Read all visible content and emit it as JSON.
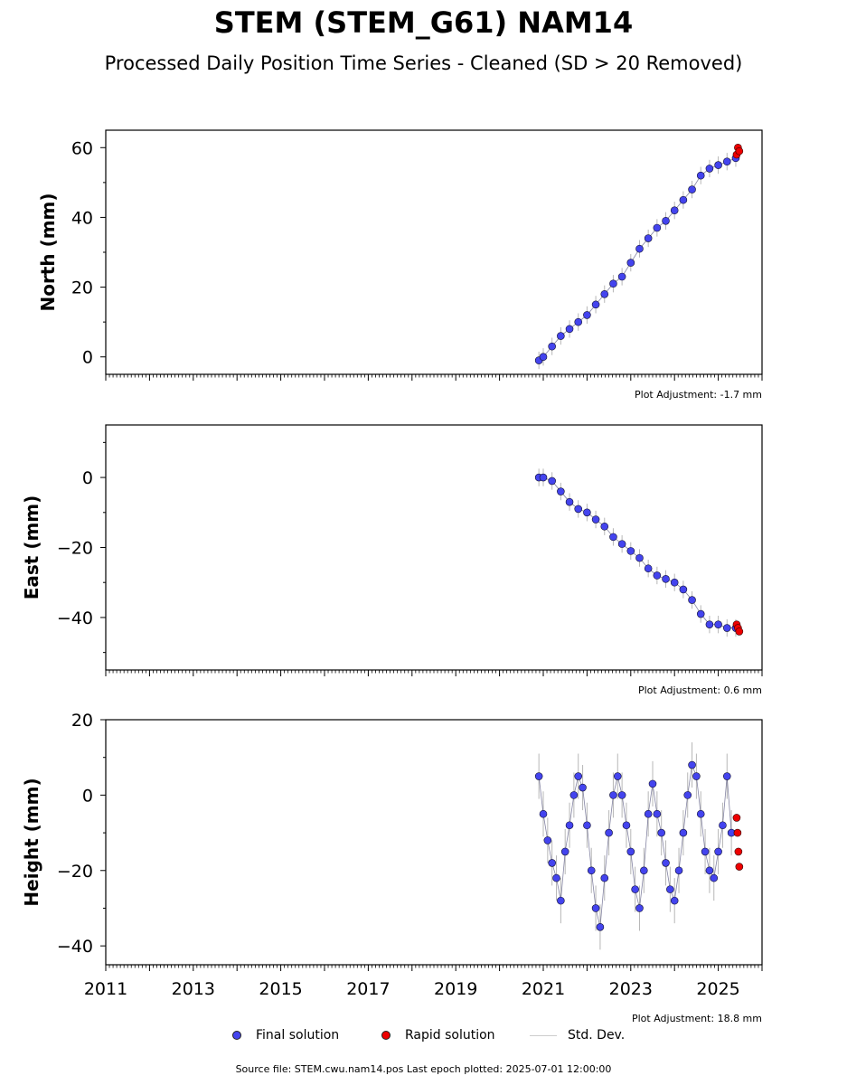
{
  "title": "STEM (STEM_G61) NAM14",
  "subtitle": "Processed Daily Position Time Series - Cleaned (SD > 20 Removed)",
  "colors": {
    "final": "#4444ee",
    "rapid": "#ee0000",
    "stddev": "#cccccc"
  },
  "legend": {
    "final": "Final solution",
    "rapid": "Rapid solution",
    "stddev": "Std. Dev."
  },
  "source_note": "Source file: STEM.cwu.nam14.pos  Last epoch plotted: 2025-07-01 12:00:00",
  "chart_data": [
    {
      "type": "scatter",
      "name": "north",
      "ylabel": "North (mm)",
      "xlim": [
        2011.0,
        2026.0
      ],
      "ylim": [
        -5,
        65
      ],
      "yticks": [
        0,
        20,
        40,
        60
      ],
      "adjustment": "Plot Adjustment: -1.7 mm",
      "final": {
        "x": [
          2020.9,
          2021.0,
          2021.2,
          2021.4,
          2021.6,
          2021.8,
          2022.0,
          2022.2,
          2022.4,
          2022.6,
          2022.8,
          2023.0,
          2023.2,
          2023.4,
          2023.6,
          2023.8,
          2024.0,
          2024.2,
          2024.4,
          2024.6,
          2024.8,
          2025.0,
          2025.2,
          2025.4
        ],
        "y": [
          -1,
          0,
          3,
          6,
          8,
          10,
          12,
          15,
          18,
          21,
          23,
          27,
          31,
          34,
          37,
          39,
          42,
          45,
          48,
          52,
          54,
          55,
          56,
          57
        ]
      },
      "rapid": {
        "x": [
          2025.42,
          2025.45,
          2025.48
        ],
        "y": [
          58,
          60,
          59
        ]
      }
    },
    {
      "type": "scatter",
      "name": "east",
      "ylabel": "East (mm)",
      "xlim": [
        2011.0,
        2026.0
      ],
      "ylim": [
        -55,
        15
      ],
      "yticks": [
        0,
        -20,
        -40
      ],
      "adjustment": "Plot Adjustment: 0.6 mm",
      "final": {
        "x": [
          2020.9,
          2021.0,
          2021.2,
          2021.4,
          2021.6,
          2021.8,
          2022.0,
          2022.2,
          2022.4,
          2022.6,
          2022.8,
          2023.0,
          2023.2,
          2023.4,
          2023.6,
          2023.8,
          2024.0,
          2024.2,
          2024.4,
          2024.6,
          2024.8,
          2025.0,
          2025.2,
          2025.4
        ],
        "y": [
          0,
          0,
          -1,
          -4,
          -7,
          -9,
          -10,
          -12,
          -14,
          -17,
          -19,
          -21,
          -23,
          -26,
          -28,
          -29,
          -30,
          -32,
          -35,
          -39,
          -42,
          -42,
          -43,
          -43
        ]
      },
      "rapid": {
        "x": [
          2025.42,
          2025.45,
          2025.48
        ],
        "y": [
          -42,
          -43,
          -44
        ]
      }
    },
    {
      "type": "scatter",
      "name": "height",
      "ylabel": "Height (mm)",
      "xlim": [
        2011.0,
        2026.0
      ],
      "ylim": [
        -45,
        20
      ],
      "yticks": [
        20,
        0,
        -20,
        -40
      ],
      "xticks": [
        2011,
        2013,
        2015,
        2017,
        2019,
        2021,
        2023,
        2025
      ],
      "adjustment": "Plot Adjustment: 18.8 mm",
      "final": {
        "x": [
          2020.9,
          2021.0,
          2021.1,
          2021.2,
          2021.3,
          2021.4,
          2021.5,
          2021.6,
          2021.7,
          2021.8,
          2021.9,
          2022.0,
          2022.1,
          2022.2,
          2022.3,
          2022.4,
          2022.5,
          2022.6,
          2022.7,
          2022.8,
          2022.9,
          2023.0,
          2023.1,
          2023.2,
          2023.3,
          2023.4,
          2023.5,
          2023.6,
          2023.7,
          2023.8,
          2023.9,
          2024.0,
          2024.1,
          2024.2,
          2024.3,
          2024.4,
          2024.5,
          2024.6,
          2024.7,
          2024.8,
          2024.9,
          2025.0,
          2025.1,
          2025.2,
          2025.3
        ],
        "y": [
          5,
          -5,
          -12,
          -18,
          -22,
          -28,
          -15,
          -8,
          0,
          5,
          2,
          -8,
          -20,
          -30,
          -35,
          -22,
          -10,
          0,
          5,
          0,
          -8,
          -15,
          -25,
          -30,
          -20,
          -5,
          3,
          -5,
          -10,
          -18,
          -25,
          -28,
          -20,
          -10,
          0,
          8,
          5,
          -5,
          -15,
          -20,
          -22,
          -15,
          -8,
          5,
          -10
        ]
      },
      "rapid": {
        "x": [
          2025.42,
          2025.44,
          2025.46,
          2025.48
        ],
        "y": [
          -6,
          -10,
          -15,
          -19
        ]
      }
    }
  ]
}
